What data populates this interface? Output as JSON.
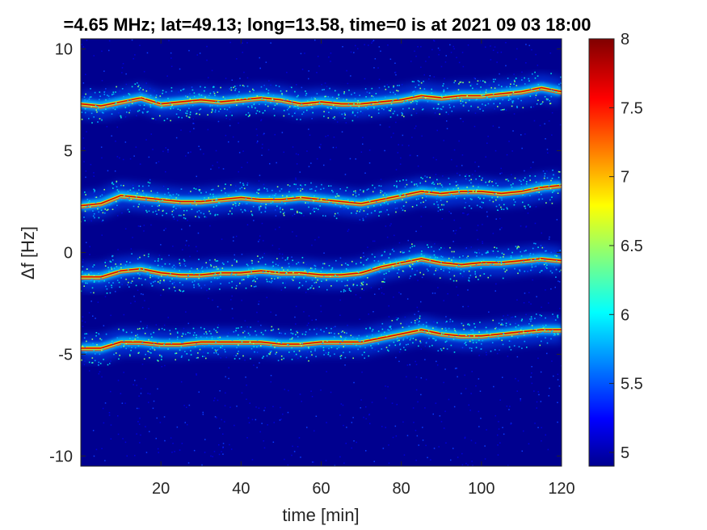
{
  "chart_data": {
    "type": "heatmap",
    "title": "=4.65 MHz;  lat=49.13; long=13.58, time=0 is at 2021 09 03 18:00",
    "xlabel": "time [min]",
    "ylabel": "Δf [Hz]",
    "xlim": [
      0,
      120
    ],
    "ylim": [
      -10.5,
      10.5
    ],
    "xticks": [
      20,
      40,
      60,
      80,
      100,
      120
    ],
    "xtick_labels": [
      "20",
      "40",
      "60",
      "80",
      "100",
      "120"
    ],
    "yticks": [
      10,
      5,
      0,
      -5,
      -10
    ],
    "ytick_labels": [
      "10",
      "5",
      "0",
      "-5",
      "-10"
    ],
    "colorbar": {
      "range": [
        4.9,
        8.0
      ],
      "ticks": [
        8,
        7.5,
        7,
        6.5,
        6,
        5.5,
        5
      ],
      "tick_labels": [
        "8",
        "7.5",
        "7",
        "6.5",
        "6",
        "5.5",
        "5"
      ],
      "colormap": "jet"
    },
    "background_color": "#00008f",
    "series": [
      {
        "x": [
          0,
          5,
          10,
          15,
          20,
          25,
          30,
          35,
          40,
          45,
          50,
          55,
          60,
          65,
          70,
          75,
          80,
          85,
          90,
          95,
          100,
          105,
          110,
          115,
          120
        ],
        "values": [
          7.3,
          7.2,
          7.4,
          7.6,
          7.3,
          7.4,
          7.5,
          7.4,
          7.5,
          7.6,
          7.5,
          7.3,
          7.4,
          7.3,
          7.3,
          7.4,
          7.5,
          7.7,
          7.6,
          7.7,
          7.7,
          7.8,
          7.9,
          8.1,
          7.9
        ]
      },
      {
        "x": [
          0,
          5,
          10,
          15,
          20,
          25,
          30,
          35,
          40,
          45,
          50,
          55,
          60,
          65,
          70,
          75,
          80,
          85,
          90,
          95,
          100,
          105,
          110,
          115,
          120
        ],
        "values": [
          2.3,
          2.4,
          2.8,
          2.7,
          2.6,
          2.5,
          2.5,
          2.6,
          2.7,
          2.6,
          2.6,
          2.7,
          2.6,
          2.5,
          2.4,
          2.6,
          2.8,
          3.0,
          2.9,
          3.0,
          3.0,
          2.9,
          3.0,
          3.2,
          3.3
        ]
      },
      {
        "x": [
          0,
          5,
          10,
          15,
          20,
          25,
          30,
          35,
          40,
          45,
          50,
          55,
          60,
          65,
          70,
          75,
          80,
          85,
          90,
          95,
          100,
          105,
          110,
          115,
          120
        ],
        "values": [
          -1.2,
          -1.2,
          -0.9,
          -0.8,
          -1.0,
          -1.1,
          -1.1,
          -1.0,
          -1.0,
          -0.9,
          -1.0,
          -1.0,
          -1.1,
          -1.1,
          -1.0,
          -0.7,
          -0.5,
          -0.3,
          -0.5,
          -0.6,
          -0.5,
          -0.5,
          -0.4,
          -0.3,
          -0.4
        ]
      },
      {
        "x": [
          0,
          5,
          10,
          15,
          20,
          25,
          30,
          35,
          40,
          45,
          50,
          55,
          60,
          65,
          70,
          75,
          80,
          85,
          90,
          95,
          100,
          105,
          110,
          115,
          120
        ],
        "values": [
          -4.7,
          -4.7,
          -4.4,
          -4.4,
          -4.5,
          -4.5,
          -4.4,
          -4.4,
          -4.4,
          -4.4,
          -4.5,
          -4.5,
          -4.4,
          -4.4,
          -4.4,
          -4.2,
          -4.0,
          -3.8,
          -4.0,
          -4.1,
          -4.1,
          -4.0,
          -3.9,
          -3.8,
          -3.8
        ]
      }
    ]
  }
}
